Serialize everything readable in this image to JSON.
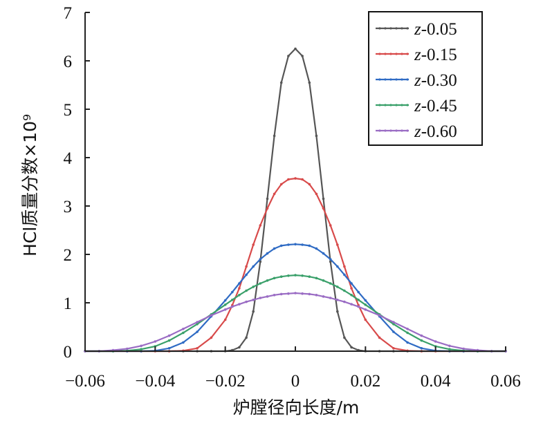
{
  "chart_data": {
    "type": "line",
    "xlabel": "炉膛径向长度/m",
    "ylabel": "HCl质量分数×10⁹",
    "xlim": [
      -0.06,
      0.06
    ],
    "ylim": [
      0,
      7
    ],
    "x_ticks": [
      "−0.06",
      "−0.04",
      "−0.02",
      "0",
      "0.02",
      "0.04",
      "0.06"
    ],
    "y_ticks": [
      "0",
      "1",
      "2",
      "3",
      "4",
      "5",
      "6",
      "7"
    ],
    "grid": false,
    "legend_position": "top-right",
    "x": [
      -0.06,
      -0.056,
      -0.052,
      -0.048,
      -0.044,
      -0.04,
      -0.036,
      -0.032,
      -0.028,
      -0.024,
      -0.02,
      -0.018,
      -0.016,
      -0.014,
      -0.012,
      -0.01,
      -0.008,
      -0.006,
      -0.004,
      -0.002,
      0,
      0.002,
      0.004,
      0.006,
      0.008,
      0.01,
      0.012,
      0.014,
      0.016,
      0.018,
      0.02,
      0.024,
      0.028,
      0.032,
      0.036,
      0.04,
      0.044,
      0.048,
      0.052,
      0.056,
      0.06
    ],
    "series": [
      {
        "name": "z-0.05",
        "prefix": "z",
        "suffix": "-0.05",
        "color": "#555555",
        "values": [
          0,
          0,
          0,
          0,
          0,
          0,
          0,
          0,
          0,
          0,
          0,
          0.02,
          0.08,
          0.28,
          0.82,
          1.85,
          3.15,
          4.45,
          5.55,
          6.1,
          6.25,
          6.1,
          5.55,
          4.45,
          3.15,
          1.85,
          0.82,
          0.28,
          0.08,
          0.02,
          0,
          0,
          0,
          0,
          0,
          0,
          0,
          0,
          0,
          0,
          0
        ]
      },
      {
        "name": "z-0.15",
        "prefix": "z",
        "suffix": "-0.15",
        "color": "#d84a4a",
        "values": [
          0,
          0,
          0,
          0,
          0,
          0,
          0,
          0.01,
          0.06,
          0.28,
          0.65,
          0.95,
          1.3,
          1.75,
          2.2,
          2.6,
          2.95,
          3.25,
          3.45,
          3.55,
          3.57,
          3.55,
          3.45,
          3.25,
          2.95,
          2.6,
          2.2,
          1.75,
          1.3,
          0.95,
          0.65,
          0.28,
          0.06,
          0.01,
          0,
          0,
          0,
          0,
          0,
          0,
          0
        ]
      },
      {
        "name": "z-0.30",
        "prefix": "z",
        "suffix": "-0.30",
        "color": "#2f6bc4",
        "values": [
          0,
          0,
          0,
          0,
          0,
          0.01,
          0.06,
          0.18,
          0.4,
          0.72,
          1.05,
          1.22,
          1.4,
          1.58,
          1.75,
          1.9,
          2.02,
          2.12,
          2.18,
          2.2,
          2.21,
          2.2,
          2.18,
          2.12,
          2.02,
          1.9,
          1.75,
          1.58,
          1.4,
          1.22,
          1.05,
          0.72,
          0.4,
          0.18,
          0.06,
          0.01,
          0,
          0,
          0,
          0,
          0
        ]
      },
      {
        "name": "z-0.45",
        "prefix": "z",
        "suffix": "-0.45",
        "color": "#3aa06a",
        "values": [
          0,
          0,
          0,
          0.01,
          0.04,
          0.1,
          0.22,
          0.38,
          0.56,
          0.76,
          0.96,
          1.06,
          1.16,
          1.25,
          1.33,
          1.4,
          1.46,
          1.51,
          1.54,
          1.56,
          1.57,
          1.56,
          1.54,
          1.51,
          1.46,
          1.4,
          1.33,
          1.25,
          1.16,
          1.06,
          0.96,
          0.76,
          0.56,
          0.38,
          0.22,
          0.1,
          0.04,
          0.01,
          0,
          0,
          0
        ]
      },
      {
        "name": "z-0.60",
        "prefix": "z",
        "suffix": "-0.60",
        "color": "#9a6cc4",
        "values": [
          0,
          0,
          0.02,
          0.05,
          0.11,
          0.2,
          0.32,
          0.46,
          0.6,
          0.74,
          0.86,
          0.92,
          0.97,
          1.02,
          1.06,
          1.1,
          1.13,
          1.16,
          1.18,
          1.19,
          1.2,
          1.19,
          1.18,
          1.16,
          1.13,
          1.1,
          1.06,
          1.02,
          0.97,
          0.92,
          0.86,
          0.74,
          0.6,
          0.46,
          0.32,
          0.2,
          0.11,
          0.05,
          0.02,
          0,
          0
        ]
      }
    ]
  }
}
